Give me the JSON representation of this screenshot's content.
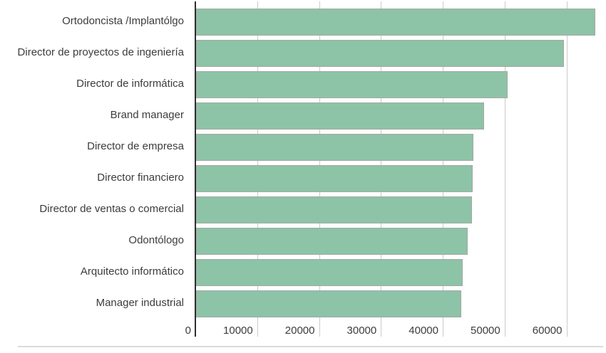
{
  "chart_data": {
    "type": "bar",
    "orientation": "horizontal",
    "title": "",
    "xlabel": "",
    "ylabel": "",
    "categories": [
      "Ortodoncista /Implantólgo",
      "Director de proyectos de ingeniería",
      "Director de informática",
      "Brand manager",
      "Director de empresa",
      "Director financiero",
      "Director de ventas o comercial",
      "Odontólogo",
      "Arquitecto informático",
      "Manager industrial"
    ],
    "values": [
      64600,
      59500,
      50400,
      46600,
      44800,
      44700,
      44600,
      43900,
      43100,
      42900
    ],
    "x_ticks": [
      0,
      10000,
      20000,
      30000,
      40000,
      50000,
      60000
    ],
    "xlim": [
      0,
      66400
    ],
    "grid": true,
    "legend": false,
    "colors": {
      "bar_fill": "#8dc3a6",
      "bar_border": "#a4a9a6",
      "axis_line": "#2e2e2e",
      "gridline": "#cbcbcb",
      "label_text": "#3c3c3c",
      "separator": "#dbdbdb",
      "background": "#ffffff"
    }
  }
}
